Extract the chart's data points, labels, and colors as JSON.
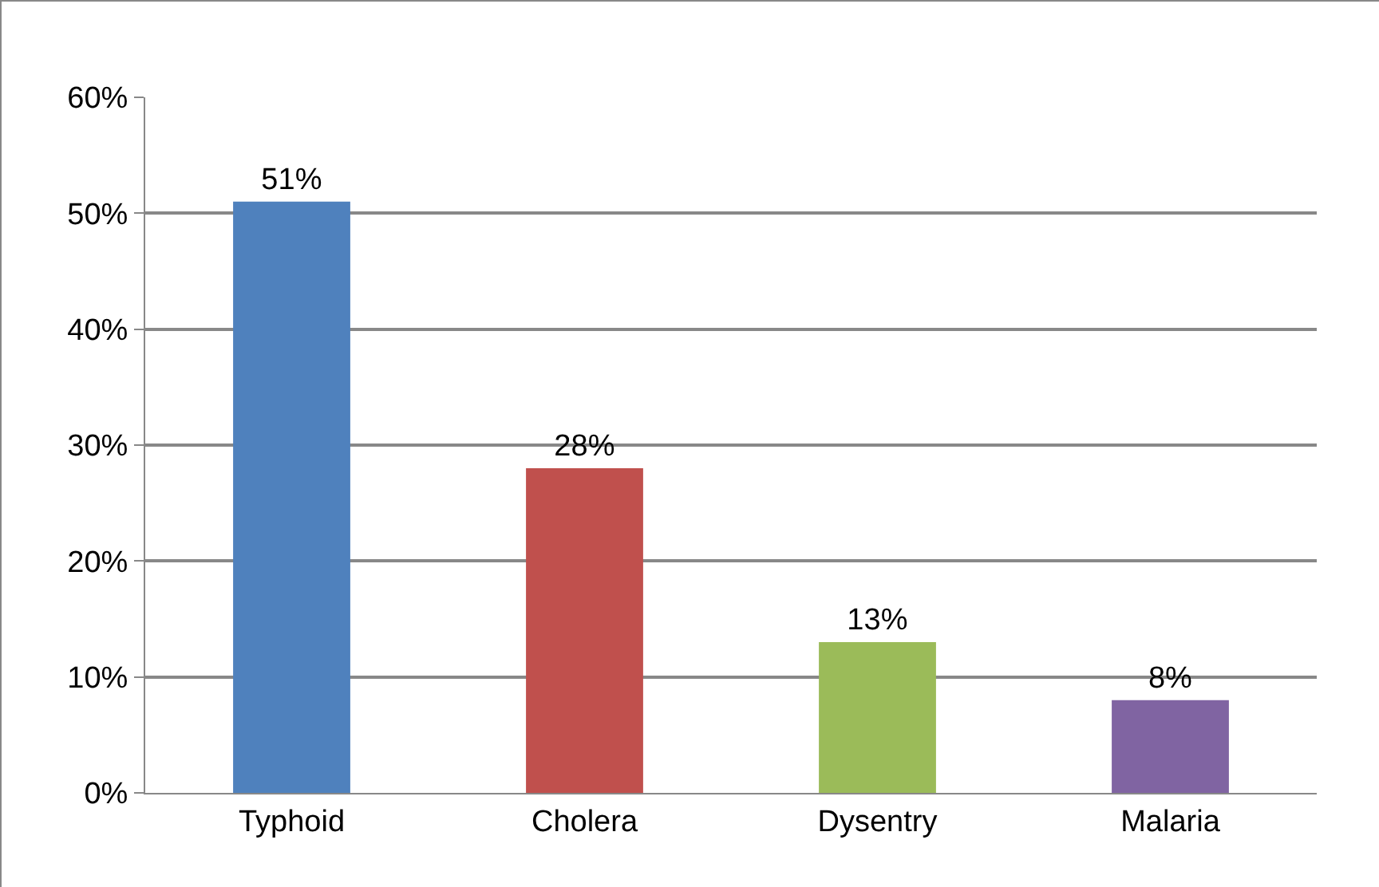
{
  "chart_data": {
    "type": "bar",
    "categories": [
      "Typhoid",
      "Cholera",
      "Dysentry",
      "Malaria"
    ],
    "values": [
      51,
      28,
      13,
      8
    ],
    "colors": [
      "#4f81bd",
      "#c0504d",
      "#9bbb59",
      "#8064a2"
    ],
    "value_labels": [
      "51%",
      "28%",
      "13%",
      "8%"
    ],
    "ylim": [
      0,
      60
    ],
    "yticks": [
      {
        "value": 0,
        "label": "0%"
      },
      {
        "value": 10,
        "label": "10%"
      },
      {
        "value": 20,
        "label": "20%"
      },
      {
        "value": 30,
        "label": "30%"
      },
      {
        "value": 40,
        "label": "40%"
      },
      {
        "value": 50,
        "label": "50%"
      },
      {
        "value": 60,
        "label": "60%"
      }
    ],
    "grid": "y"
  }
}
